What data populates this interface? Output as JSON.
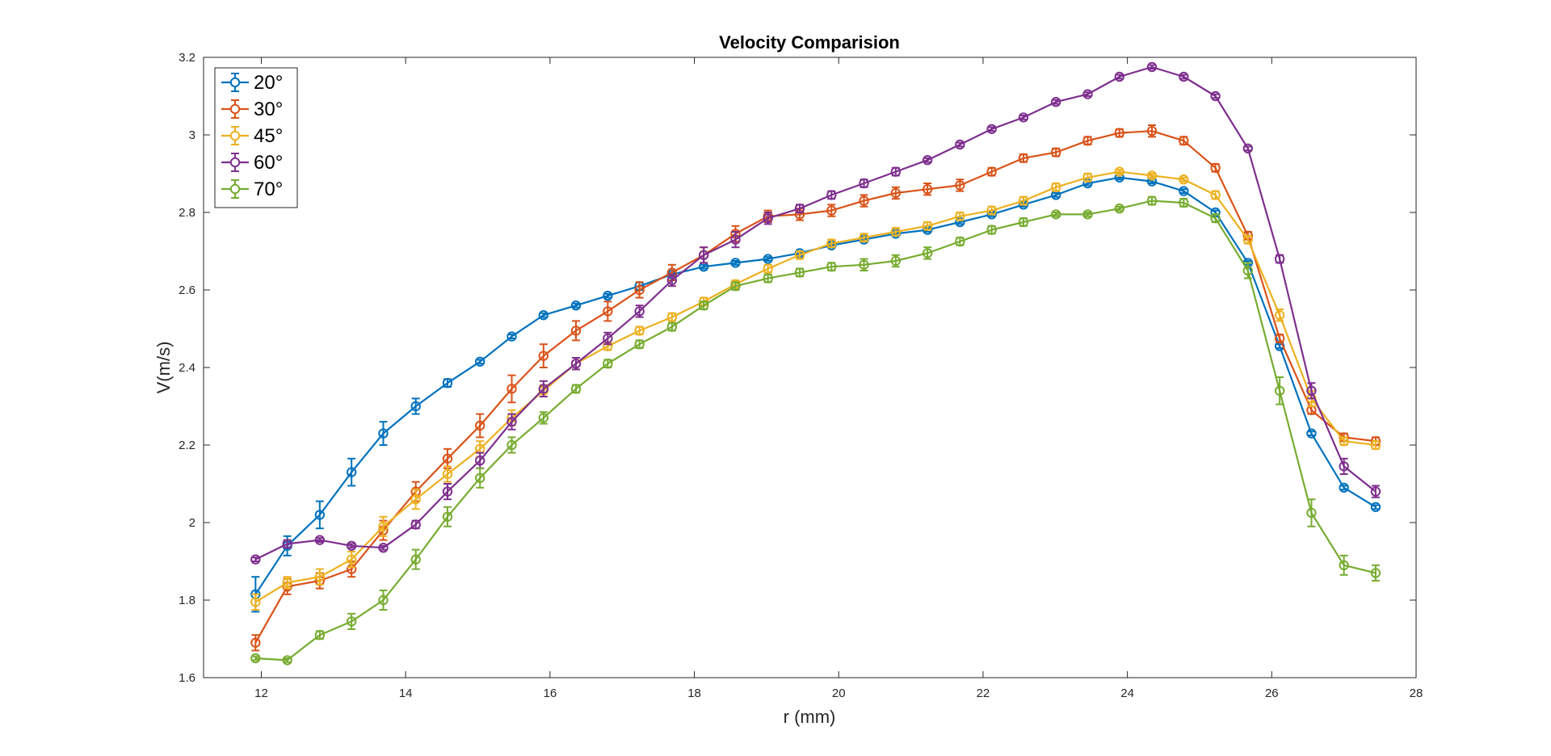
{
  "chart_data": {
    "type": "line",
    "title": "Velocity Comparision",
    "xlabel": "r (mm)",
    "ylabel": "V(m/s)",
    "xlim": [
      11.2,
      28
    ],
    "ylim": [
      1.6,
      3.2
    ],
    "xticks": [
      "12",
      "14",
      "16",
      "18",
      "20",
      "22",
      "24",
      "26",
      "28"
    ],
    "yticks": [
      "1.6",
      "1.8",
      "2",
      "2.2",
      "2.4",
      "2.6",
      "2.8",
      "3",
      "3.2"
    ],
    "xtick_values": [
      12,
      14,
      16,
      18,
      20,
      22,
      24,
      26,
      28
    ],
    "ytick_values": [
      1.6,
      1.8,
      2.0,
      2.2,
      2.4,
      2.6,
      2.8,
      3.0,
      3.2
    ],
    "grid": false,
    "legend_position": "top-left",
    "markers": "circle with error bars",
    "x": [
      11.92,
      12.36,
      12.81,
      13.25,
      13.69,
      14.14,
      14.58,
      15.03,
      15.47,
      15.91,
      16.36,
      16.8,
      17.24,
      17.69,
      18.13,
      18.57,
      19.02,
      19.46,
      19.9,
      20.35,
      20.79,
      21.23,
      21.68,
      22.12,
      22.56,
      23.01,
      23.45,
      23.89,
      24.34,
      24.78,
      25.22,
      25.67,
      26.11,
      26.55,
      27.0,
      27.44
    ],
    "series": [
      {
        "name": "20°",
        "color": "#0072BD",
        "values": [
          1.815,
          1.94,
          2.02,
          2.13,
          2.23,
          2.3,
          2.36,
          2.415,
          2.48,
          2.535,
          2.56,
          2.585,
          2.61,
          2.64,
          2.66,
          2.67,
          2.68,
          2.695,
          2.715,
          2.73,
          2.745,
          2.755,
          2.775,
          2.795,
          2.82,
          2.845,
          2.875,
          2.89,
          2.88,
          2.855,
          2.8,
          2.67,
          2.455,
          2.23,
          2.09,
          2.04
        ],
        "errors": [
          0.045,
          0.025,
          0.035,
          0.035,
          0.03,
          0.02,
          0.01,
          0.005,
          0.005,
          0.005,
          0.005,
          0.005,
          0.01,
          0.005,
          0.005,
          0.005,
          0.005,
          0.005,
          0.005,
          0.005,
          0.005,
          0.005,
          0.005,
          0.005,
          0.005,
          0.005,
          0.005,
          0.005,
          0.005,
          0.005,
          0.005,
          0.005,
          0.005,
          0.005,
          0.005,
          0.005
        ]
      },
      {
        "name": "30°",
        "color": "#D95319",
        "values": [
          1.69,
          1.835,
          1.85,
          1.88,
          1.98,
          2.08,
          2.165,
          2.25,
          2.345,
          2.43,
          2.495,
          2.545,
          2.6,
          2.645,
          2.69,
          2.745,
          2.79,
          2.795,
          2.805,
          2.83,
          2.85,
          2.86,
          2.87,
          2.905,
          2.94,
          2.955,
          2.985,
          3.005,
          3.01,
          2.985,
          2.915,
          2.74,
          2.475,
          2.29,
          2.22,
          2.21
        ],
        "errors": [
          0.02,
          0.02,
          0.02,
          0.02,
          0.025,
          0.025,
          0.025,
          0.03,
          0.035,
          0.03,
          0.025,
          0.025,
          0.02,
          0.02,
          0.02,
          0.02,
          0.015,
          0.015,
          0.015,
          0.015,
          0.015,
          0.015,
          0.015,
          0.01,
          0.01,
          0.01,
          0.01,
          0.01,
          0.015,
          0.01,
          0.01,
          0.01,
          0.01,
          0.01,
          0.01,
          0.01
        ]
      },
      {
        "name": "45°",
        "color": "#EDB120",
        "values": [
          1.795,
          1.845,
          1.86,
          1.905,
          1.99,
          2.06,
          2.125,
          2.19,
          2.27,
          2.34,
          2.41,
          2.455,
          2.495,
          2.53,
          2.57,
          2.615,
          2.655,
          2.69,
          2.72,
          2.735,
          2.75,
          2.765,
          2.79,
          2.805,
          2.83,
          2.865,
          2.89,
          2.905,
          2.895,
          2.885,
          2.845,
          2.73,
          2.535,
          2.32,
          2.21,
          2.2
        ],
        "errors": [
          0.02,
          0.015,
          0.02,
          0.02,
          0.025,
          0.025,
          0.02,
          0.02,
          0.02,
          0.015,
          0.015,
          0.01,
          0.01,
          0.01,
          0.01,
          0.01,
          0.01,
          0.01,
          0.01,
          0.01,
          0.01,
          0.01,
          0.01,
          0.01,
          0.01,
          0.01,
          0.01,
          0.005,
          0.005,
          0.005,
          0.01,
          0.01,
          0.015,
          0.02,
          0.01,
          0.01
        ]
      },
      {
        "name": "60°",
        "color": "#7E2F8E",
        "values": [
          1.905,
          1.945,
          1.955,
          1.94,
          1.935,
          1.995,
          2.08,
          2.16,
          2.26,
          2.345,
          2.41,
          2.475,
          2.545,
          2.625,
          2.69,
          2.73,
          2.785,
          2.81,
          2.845,
          2.875,
          2.905,
          2.935,
          2.975,
          3.015,
          3.045,
          3.085,
          3.105,
          3.15,
          3.175,
          3.15,
          3.1,
          2.965,
          2.68,
          2.34,
          2.145,
          2.08
        ],
        "errors": [
          0.005,
          0.01,
          0.005,
          0.005,
          0.005,
          0.01,
          0.02,
          0.02,
          0.02,
          0.02,
          0.015,
          0.015,
          0.015,
          0.015,
          0.02,
          0.02,
          0.015,
          0.01,
          0.01,
          0.01,
          0.01,
          0.005,
          0.005,
          0.005,
          0.005,
          0.005,
          0.005,
          0.005,
          0.005,
          0.005,
          0.005,
          0.005,
          0.01,
          0.02,
          0.02,
          0.015
        ]
      },
      {
        "name": "70°",
        "color": "#77AC30",
        "values": [
          1.65,
          1.645,
          1.71,
          1.745,
          1.8,
          1.905,
          2.015,
          2.115,
          2.2,
          2.27,
          2.345,
          2.41,
          2.46,
          2.505,
          2.56,
          2.61,
          2.63,
          2.645,
          2.66,
          2.665,
          2.675,
          2.695,
          2.725,
          2.755,
          2.775,
          2.795,
          2.795,
          2.81,
          2.83,
          2.825,
          2.785,
          2.65,
          2.34,
          2.025,
          1.89,
          1.87
        ],
        "errors": [
          0.005,
          0.005,
          0.01,
          0.02,
          0.025,
          0.025,
          0.025,
          0.025,
          0.02,
          0.015,
          0.01,
          0.01,
          0.01,
          0.01,
          0.01,
          0.01,
          0.01,
          0.01,
          0.01,
          0.015,
          0.015,
          0.015,
          0.01,
          0.01,
          0.01,
          0.005,
          0.005,
          0.005,
          0.01,
          0.01,
          0.01,
          0.02,
          0.035,
          0.035,
          0.025,
          0.02
        ]
      }
    ]
  }
}
